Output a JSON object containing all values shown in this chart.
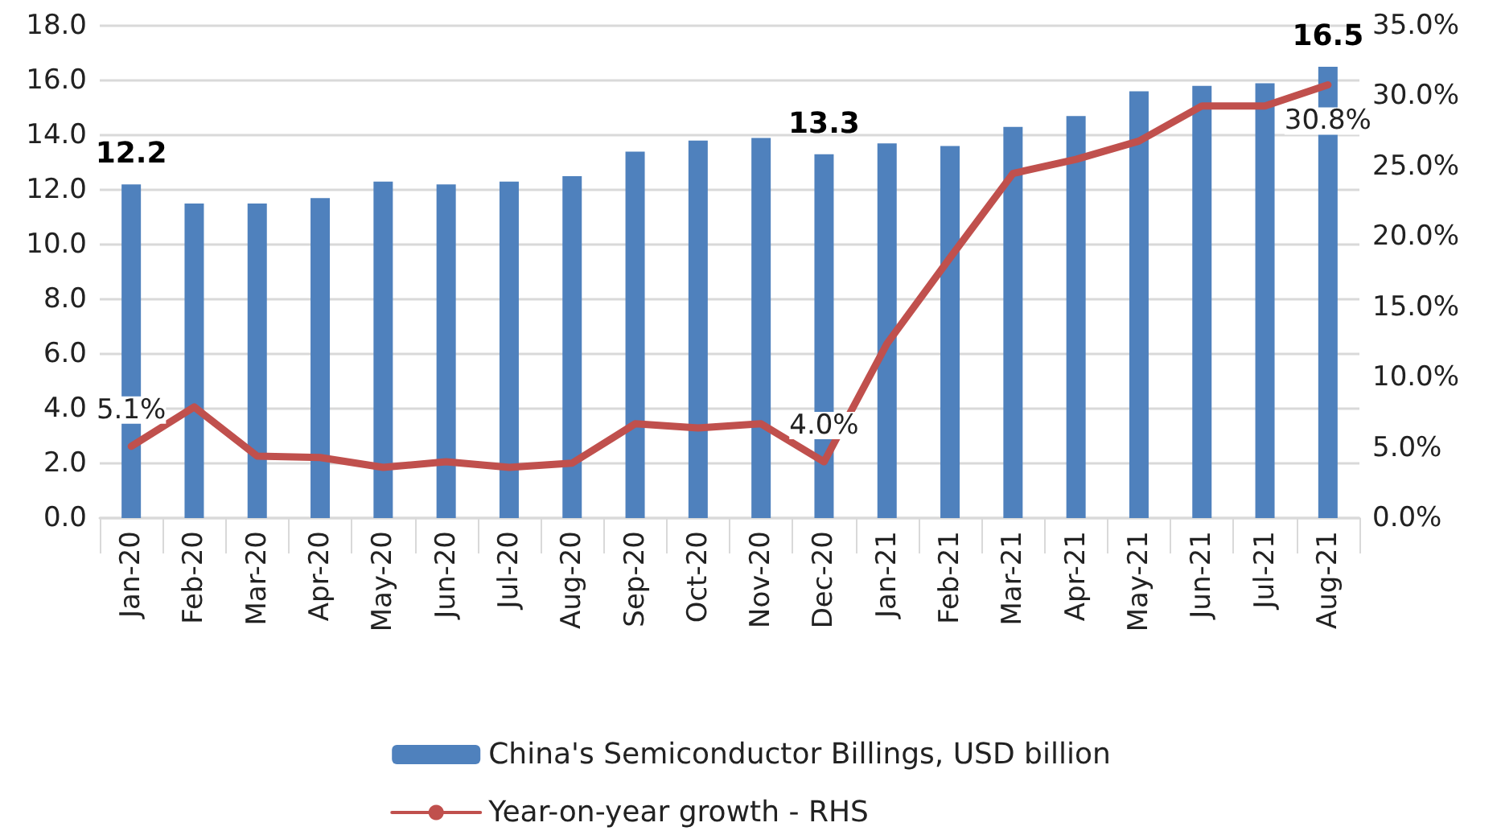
{
  "chart_data": {
    "type": "bar",
    "categories": [
      "Jan-20",
      "Feb-20",
      "Mar-20",
      "Apr-20",
      "May-20",
      "Jun-20",
      "Jul-20",
      "Aug-20",
      "Sep-20",
      "Oct-20",
      "Nov-20",
      "Dec-20",
      "Jan-21",
      "Feb-21",
      "Mar-21",
      "Apr-21",
      "May-21",
      "Jun-21",
      "Jul-21",
      "Aug-21"
    ],
    "series": [
      {
        "name": "China's Semiconductor Billings, USD billion",
        "color": "#4f81bd",
        "values": [
          12.2,
          11.5,
          11.5,
          11.7,
          12.3,
          12.2,
          12.3,
          12.5,
          13.4,
          13.8,
          13.9,
          13.3,
          13.7,
          13.6,
          14.3,
          14.7,
          15.6,
          15.8,
          15.9,
          16.5
        ],
        "value_labels": [
          "12.2",
          null,
          null,
          null,
          null,
          null,
          null,
          null,
          null,
          null,
          null,
          "13.3",
          null,
          null,
          null,
          null,
          null,
          null,
          null,
          "16.5"
        ]
      },
      {
        "name": "Year-on-year growth - RHS",
        "type": "line",
        "axis": "y2",
        "color": "#c0504d",
        "values": [
          5.1,
          7.9,
          4.4,
          4.3,
          3.6,
          4.0,
          3.6,
          3.9,
          6.7,
          6.4,
          6.7,
          4.0,
          12.4,
          18.5,
          24.5,
          25.5,
          26.8,
          29.3,
          29.3,
          30.8
        ],
        "value_labels": [
          "5.1%",
          null,
          null,
          null,
          null,
          null,
          null,
          null,
          null,
          null,
          null,
          "4.0%",
          null,
          null,
          null,
          null,
          null,
          null,
          null,
          "30.8%"
        ]
      }
    ],
    "ylim": [
      0,
      18
    ],
    "yticks": [
      {
        "value": 0,
        "label": "0.0"
      },
      {
        "value": 2,
        "label": "2.0"
      },
      {
        "value": 4,
        "label": "4.0"
      },
      {
        "value": 6,
        "label": "6.0"
      },
      {
        "value": 8,
        "label": "8.0"
      },
      {
        "value": 10,
        "label": "10.0"
      },
      {
        "value": 12,
        "label": "12.0"
      },
      {
        "value": 14,
        "label": "14.0"
      },
      {
        "value": 16,
        "label": "16.0"
      },
      {
        "value": 18,
        "label": "18.0"
      }
    ],
    "y2lim": [
      0,
      35
    ],
    "y2ticks": [
      {
        "value": 0,
        "label": "0.0%"
      },
      {
        "value": 5,
        "label": "5.0%"
      },
      {
        "value": 10,
        "label": "10.0%"
      },
      {
        "value": 15,
        "label": "15.0%"
      },
      {
        "value": 20,
        "label": "20.0%"
      },
      {
        "value": 25,
        "label": "25.0%"
      },
      {
        "value": 30,
        "label": "30.0%"
      },
      {
        "value": 35,
        "label": "35.0%"
      }
    ],
    "grid": "y",
    "legend": "bottom",
    "marker": "none",
    "line_style": "solid"
  }
}
